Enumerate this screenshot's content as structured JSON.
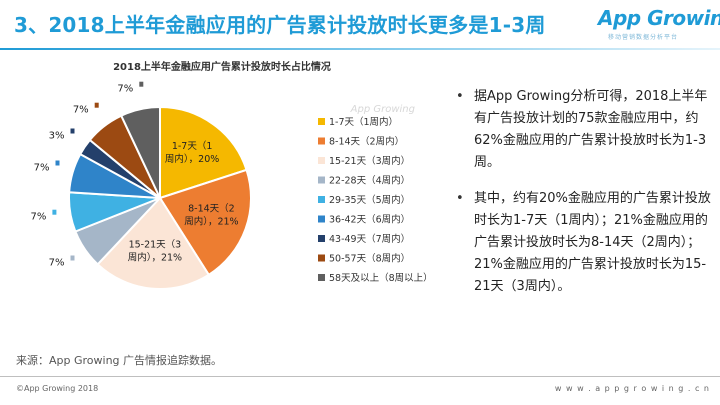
{
  "header": {
    "title": "3、2018上半年金融应用的广告累计投放时长更多是1-3周",
    "logo_text": "App Growing",
    "logo_tagline": "移动营销数据分析平台"
  },
  "chart_data": {
    "type": "pie",
    "title": "2018上半年金融应用广告累计投放时长占比情况",
    "watermark": "App Growing",
    "legend_position": "right",
    "slices": [
      {
        "name": "1-7天（1周内）",
        "value": 20,
        "label": "1-7天（1周内），20%",
        "color": "#f5b800"
      },
      {
        "name": "8-14天（2周内）",
        "value": 21,
        "label": "8-14天（2周内），21%",
        "color": "#ed7d31"
      },
      {
        "name": "15-21天（3周内）",
        "value": 21,
        "label": "15-21天（3周内），21%",
        "color": "#fbe5d6"
      },
      {
        "name": "22-28天（4周内）",
        "value": 7,
        "label": "7%",
        "color": "#a5b6c8"
      },
      {
        "name": "29-35天（5周内）",
        "value": 7,
        "label": "7%",
        "color": "#3fb1e3"
      },
      {
        "name": "36-42天（6周内）",
        "value": 7,
        "label": "7%",
        "color": "#2f84c9"
      },
      {
        "name": "43-49天（7周内）",
        "value": 3,
        "label": "3%",
        "color": "#24406b"
      },
      {
        "name": "50-57天（8周内）",
        "value": 7,
        "label": "7%",
        "color": "#9c4a12"
      },
      {
        "name": "58天及以上（8周以上）",
        "value": 7,
        "label": "7%",
        "color": "#5f5f5f"
      }
    ]
  },
  "bullets": [
    "据App Growing分析可得，2018上半年有广告投放计划的75款金融应用中，约62%金融应用的广告累计投放时长为1-3周。",
    "其中，约有20%金融应用的广告累计投放时长为1-7天（1周内）；21%金融应用的广告累计投放时长为8-14天（2周内）；21%金融应用的广告累计投放时长为15-21天（3周内）。"
  ],
  "footer": {
    "source": "来源：App Growing 广告情报追踪数据。",
    "copyright": "©App Growing 2018",
    "url": "w w w . a p p g r o w i n g . c n"
  }
}
